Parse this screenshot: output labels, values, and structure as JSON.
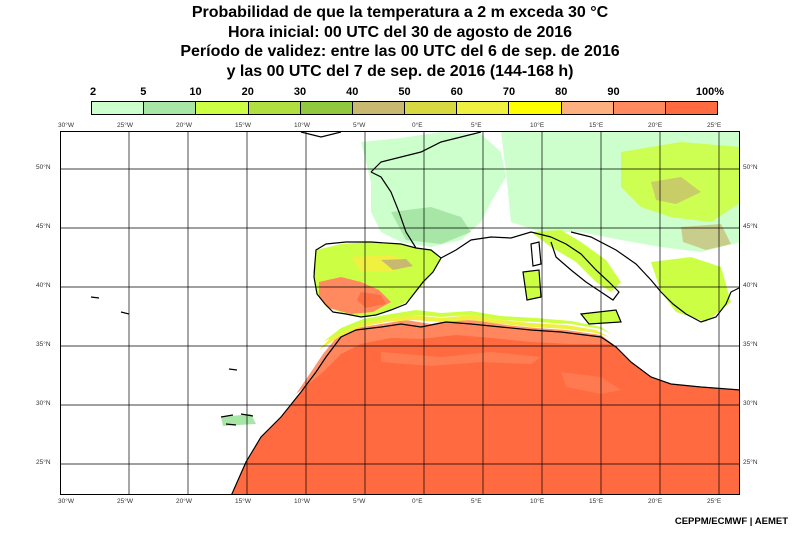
{
  "title": {
    "line1": "Probabilidad de que la temperatura a 2 m exceda 30 °C",
    "line2": "Hora inicial: 00 UTC del 30 de agosto de 2016",
    "line3": "Período de validez: entre las 00 UTC del 6 de sep. de 2016",
    "line4": "y las 00 UTC del 7 de sep. de 2016 (144-168 h)"
  },
  "legend": {
    "labels": [
      "2",
      "5",
      "10",
      "20",
      "30",
      "40",
      "50",
      "60",
      "70",
      "80",
      "90",
      "100%"
    ],
    "colors": [
      "#ccffcc",
      "#a8e6a8",
      "#ccff44",
      "#b0e040",
      "#90c840",
      "#c8b870",
      "#d8d840",
      "#f0f040",
      "#ffff00",
      "#ffb080",
      "#ff8a60",
      "#ff6a40"
    ]
  },
  "map": {
    "lon_labels": [
      "30°W",
      "25°W",
      "20°W",
      "15°W",
      "10°W",
      "5°W",
      "0°E",
      "5°E",
      "10°E",
      "15°E",
      "20°E",
      "25°E"
    ],
    "lat_labels_left": [
      "50°N",
      "45°N",
      "40°N",
      "35°N",
      "30°N",
      "25°N"
    ],
    "lat_labels_right": [
      "50°N",
      "45°N",
      "40°N",
      "35°N",
      "30°N",
      "25°N"
    ],
    "colors": {
      "desert": "#ff6a40",
      "desert_edge": "#ff8a60",
      "warm": "#ffb080",
      "yellow": "#ffff00",
      "green_light": "#ccffcc",
      "green_mid": "#a8e6a8",
      "green_yellow": "#ccff44",
      "olive": "#c8b870",
      "sea": "#ffffff",
      "coast": "#000000",
      "grid": "#000000"
    }
  },
  "credit": "CEPPM/ECMWF | AEMET"
}
